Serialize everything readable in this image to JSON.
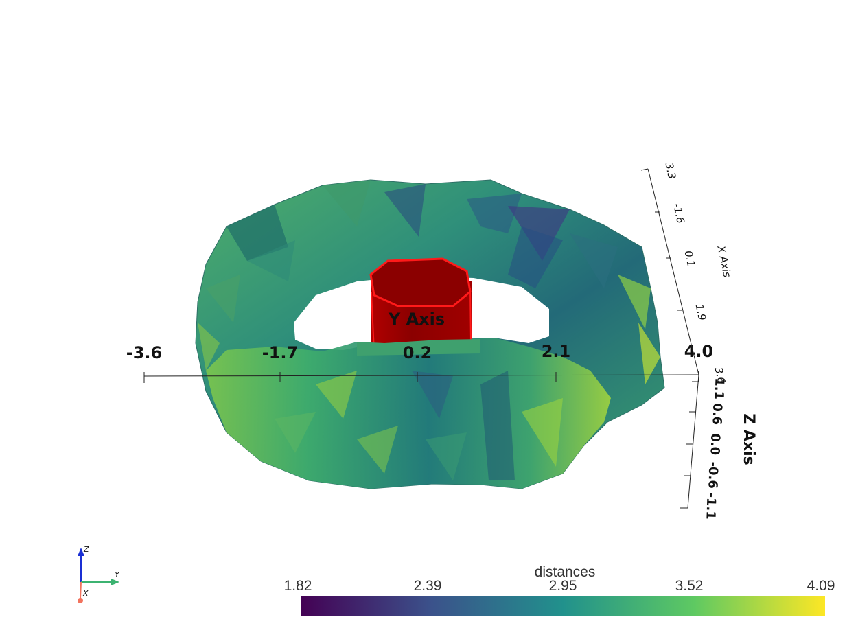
{
  "axes": {
    "y_axis_title": "Y Axis",
    "x_axis_title": "X Axis",
    "z_axis_title": "Z Axis",
    "y_ticks": [
      "-3.6",
      "-1.7",
      "0.2",
      "2.1",
      "4.0"
    ],
    "x_ticks": [
      "3.3",
      "-1.6",
      "0.1",
      "1.9",
      "3.6"
    ],
    "z_ticks": [
      "1.1",
      "0.6",
      "0.0",
      "-0.6",
      "-1.1"
    ]
  },
  "colorbar": {
    "title": "distances",
    "ticks": [
      "1.82",
      "2.39",
      "2.95",
      "3.52",
      "4.09"
    ],
    "colormap": [
      "#440154",
      "#3b528b",
      "#21918c",
      "#5ec962",
      "#fde725"
    ]
  },
  "orientation_widget": {
    "labels": [
      "Z",
      "Y",
      "X"
    ],
    "colors": {
      "z": "#1a2fd4",
      "y": "#3cb371",
      "x": "#f2735e"
    }
  },
  "colors": {
    "cylinder": "#8b0000",
    "cylinder_edge": "#ff0000",
    "torus_base": "#2a7f70"
  }
}
